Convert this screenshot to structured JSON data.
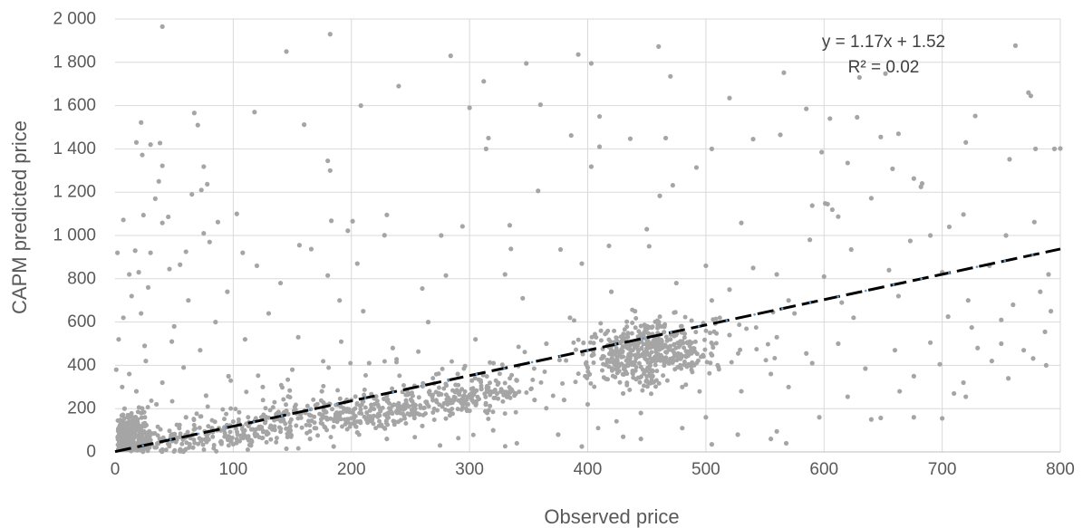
{
  "chart_data": {
    "type": "scatter",
    "title": "",
    "xlabel": "Observed price",
    "ylabel": "CAPM predicted price",
    "xlim": [
      0,
      800
    ],
    "ylim": [
      0,
      2000
    ],
    "x_ticks": [
      "0",
      "100",
      "200",
      "300",
      "400",
      "500",
      "600",
      "700",
      "800"
    ],
    "y_ticks": [
      "0",
      "200",
      "400",
      "600",
      "800",
      "1 000",
      "1 200",
      "1 400",
      "1 600",
      "1 800",
      "2 000"
    ],
    "grid": true,
    "legend": "none",
    "colors": {
      "points": "#a5a5a5",
      "trendline": "#000000",
      "trendline_dots": "#5b9bd5",
      "grid": "#d9d9d9"
    },
    "trendline": {
      "slope": 1.17,
      "intercept": 1.52,
      "equation_label": "y = 1.17x + 1.52",
      "r2_label": "R² = 0.02"
    },
    "series": [
      {
        "points": [
          [
            40,
            1965
          ],
          [
            182,
            1930
          ],
          [
            145,
            1850
          ],
          [
            284,
            1830
          ],
          [
            392,
            1836
          ],
          [
            348,
            1795
          ],
          [
            403,
            1795
          ],
          [
            460,
            1873
          ],
          [
            762,
            1877
          ],
          [
            312,
            1712
          ],
          [
            470,
            1735
          ],
          [
            240,
            1690
          ],
          [
            630,
            1730
          ],
          [
            652,
            1748
          ],
          [
            566,
            1752
          ],
          [
            520,
            1635
          ],
          [
            208,
            1600
          ],
          [
            360,
            1604
          ],
          [
            67,
            1566
          ],
          [
            118,
            1570
          ],
          [
            160,
            1512
          ],
          [
            70,
            1510
          ],
          [
            22,
            1522
          ],
          [
            300,
            1590
          ],
          [
            410,
            1550
          ],
          [
            585,
            1585
          ],
          [
            605,
            1540
          ],
          [
            628,
            1546
          ],
          [
            728,
            1552
          ],
          [
            775,
            1645
          ],
          [
            773,
            1660
          ],
          [
            38,
            1427
          ],
          [
            30,
            1420
          ],
          [
            18,
            1430
          ],
          [
            316,
            1450
          ],
          [
            314,
            1400
          ],
          [
            386,
            1462
          ],
          [
            466,
            1450
          ],
          [
            436,
            1447
          ],
          [
            410,
            1410
          ],
          [
            505,
            1400
          ],
          [
            540,
            1445
          ],
          [
            563,
            1465
          ],
          [
            598,
            1385
          ],
          [
            648,
            1455
          ],
          [
            663,
            1470
          ],
          [
            757,
            1352
          ],
          [
            779,
            1400
          ],
          [
            795,
            1400
          ],
          [
            800,
            1402
          ],
          [
            720,
            1430
          ],
          [
            75,
            1318
          ],
          [
            40,
            1322
          ],
          [
            23,
            1372
          ],
          [
            180,
            1345
          ],
          [
            182,
            1300
          ],
          [
            403,
            1318
          ],
          [
            492,
            1314
          ],
          [
            620,
            1335
          ],
          [
            658,
            1308
          ],
          [
            37,
            1250
          ],
          [
            34,
            1170
          ],
          [
            78,
            1237
          ],
          [
            65,
            1190
          ],
          [
            73,
            1210
          ],
          [
            103,
            1100
          ],
          [
            87,
            1062
          ],
          [
            230,
            1095
          ],
          [
            294,
            1042
          ],
          [
            358,
            1206
          ],
          [
            461,
            1183
          ],
          [
            472,
            1232
          ],
          [
            676,
            1263
          ],
          [
            683,
            1240
          ],
          [
            601,
            1148
          ],
          [
            640,
            1172
          ],
          [
            718,
            1097
          ],
          [
            706,
            1040
          ],
          [
            778,
            1062
          ],
          [
            7,
            1072
          ],
          [
            24,
            1094
          ],
          [
            45,
            1086
          ],
          [
            183,
            1068
          ],
          [
            197,
            1022
          ],
          [
            334,
            1047
          ],
          [
            450,
            1029
          ],
          [
            530,
            1058
          ],
          [
            590,
            1138
          ],
          [
            603,
            1145
          ],
          [
            607,
            1119
          ],
          [
            682,
            1225
          ],
          [
            612,
            1087
          ],
          [
            40,
            1058
          ],
          [
            2,
            920
          ],
          [
            17,
            930
          ],
          [
            30,
            920
          ],
          [
            75,
            1010
          ],
          [
            60,
            925
          ],
          [
            80,
            970
          ],
          [
            108,
            920
          ],
          [
            156,
            955
          ],
          [
            166,
            937
          ],
          [
            201,
            1066
          ],
          [
            228,
            1001
          ],
          [
            276,
            1000
          ],
          [
            335,
            938
          ],
          [
            377,
            935
          ],
          [
            418,
            952
          ],
          [
            452,
            950
          ],
          [
            588,
            980
          ],
          [
            623,
            935
          ],
          [
            673,
            975
          ],
          [
            690,
            1000
          ],
          [
            754,
            1000
          ],
          [
            12,
            820
          ],
          [
            20,
            830
          ],
          [
            46,
            845
          ],
          [
            55,
            865
          ],
          [
            120,
            860
          ],
          [
            180,
            815
          ],
          [
            205,
            870
          ],
          [
            280,
            815
          ],
          [
            330,
            820
          ],
          [
            395,
            870
          ],
          [
            500,
            860
          ],
          [
            540,
            850
          ],
          [
            560,
            820
          ],
          [
            600,
            810
          ],
          [
            655,
            840
          ],
          [
            700,
            830
          ],
          [
            740,
            860
          ],
          [
            790,
            820
          ],
          [
            14,
            720
          ],
          [
            28,
            760
          ],
          [
            62,
            700
          ],
          [
            95,
            740
          ],
          [
            140,
            780
          ],
          [
            190,
            700
          ],
          [
            260,
            755
          ],
          [
            345,
            710
          ],
          [
            420,
            740
          ],
          [
            475,
            780
          ],
          [
            520,
            750
          ],
          [
            570,
            700
          ],
          [
            615,
            690
          ],
          [
            663,
            720
          ],
          [
            722,
            700
          ],
          [
            760,
            680
          ],
          [
            783,
            740
          ],
          [
            7,
            620
          ],
          [
            22,
            640
          ],
          [
            50,
            580
          ],
          [
            85,
            600
          ],
          [
            130,
            640
          ],
          [
            210,
            650
          ],
          [
            265,
            600
          ],
          [
            385,
            620
          ],
          [
            440,
            650
          ],
          [
            505,
            700
          ],
          [
            575,
            640
          ],
          [
            625,
            620
          ],
          [
            705,
            625
          ],
          [
            725,
            575
          ],
          [
            750,
            610
          ],
          [
            787,
            555
          ],
          [
            3,
            520
          ],
          [
            25,
            490
          ],
          [
            48,
            510
          ],
          [
            72,
            470
          ],
          [
            110,
            520
          ],
          [
            155,
            530
          ],
          [
            235,
            480
          ],
          [
            305,
            520
          ],
          [
            365,
            500
          ],
          [
            420,
            470
          ],
          [
            470,
            520
          ],
          [
            520,
            540
          ],
          [
            560,
            530
          ],
          [
            585,
            455
          ],
          [
            612,
            500
          ],
          [
            660,
            470
          ],
          [
            690,
            505
          ],
          [
            730,
            480
          ],
          [
            769,
            470
          ],
          [
            1,
            380
          ],
          [
            12,
            360
          ],
          [
            26,
            420
          ],
          [
            58,
            390
          ],
          [
            96,
            350
          ],
          [
            150,
            380
          ],
          [
            215,
            410
          ],
          [
            290,
            360
          ],
          [
            340,
            330
          ],
          [
            400,
            390
          ],
          [
            455,
            350
          ],
          [
            510,
            400
          ],
          [
            555,
            360
          ],
          [
            590,
            410
          ],
          [
            635,
            385
          ],
          [
            676,
            350
          ],
          [
            698,
            405
          ],
          [
            742,
            420
          ],
          [
            777,
            432
          ],
          [
            6,
            300
          ],
          [
            18,
            280
          ],
          [
            40,
            320
          ],
          [
            77,
            260
          ],
          [
            125,
            300
          ],
          [
            175,
            280
          ],
          [
            230,
            260
          ],
          [
            310,
            290
          ],
          [
            380,
            240
          ],
          [
            430,
            270
          ],
          [
            480,
            300
          ],
          [
            530,
            280
          ],
          [
            570,
            300
          ],
          [
            620,
            255
          ],
          [
            664,
            280
          ],
          [
            718,
            320
          ],
          [
            756,
            340
          ],
          [
            788,
            400
          ],
          [
            8,
            200
          ],
          [
            22,
            180
          ],
          [
            35,
            220
          ],
          [
            60,
            160
          ],
          [
            100,
            140
          ],
          [
            145,
            190
          ],
          [
            190,
            170
          ],
          [
            245,
            200
          ],
          [
            300,
            190
          ],
          [
            355,
            240
          ],
          [
            400,
            220
          ],
          [
            445,
            180
          ],
          [
            500,
            160
          ],
          [
            560,
            95
          ],
          [
            596,
            160
          ],
          [
            640,
            150
          ],
          [
            676,
            160
          ],
          [
            710,
            270
          ],
          [
            5,
            100
          ],
          [
            15,
            120
          ],
          [
            28,
            90
          ],
          [
            55,
            70
          ],
          [
            82,
            110
          ],
          [
            120,
            80
          ],
          [
            165,
            60
          ],
          [
            205,
            90
          ],
          [
            260,
            120
          ],
          [
            320,
            100
          ],
          [
            375,
            80
          ],
          [
            430,
            70
          ],
          [
            480,
            110
          ],
          [
            527,
            80
          ],
          [
            568,
            40
          ],
          [
            648,
            157
          ],
          [
            11,
            40
          ],
          [
            24,
            30
          ],
          [
            42,
            55
          ],
          [
            66,
            20
          ],
          [
            90,
            45
          ],
          [
            115,
            30
          ],
          [
            145,
            15
          ],
          [
            185,
            25
          ],
          [
            230,
            60
          ],
          [
            275,
            30
          ],
          [
            340,
            40
          ],
          [
            395,
            25
          ],
          [
            445,
            60
          ],
          [
            505,
            35
          ],
          [
            555,
            60
          ],
          [
            700,
            155
          ],
          [
            720,
            255
          ],
          [
            750,
            500
          ],
          [
            792,
            650
          ]
        ]
      }
    ]
  }
}
